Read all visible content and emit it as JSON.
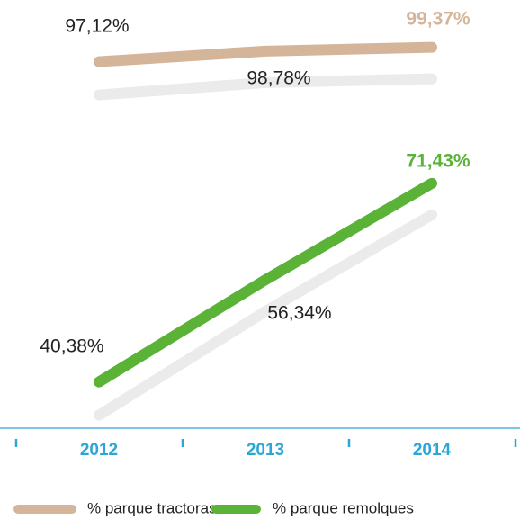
{
  "chart_data": [
    {
      "type": "line",
      "series": [
        {
          "name": "% parque tractoras",
          "color": "#d4b59a",
          "values": [
            97.12,
            98.78,
            99.37
          ],
          "value_labels": [
            "97,12%",
            "98,78%",
            "99,37%"
          ]
        }
      ],
      "ylim": [
        87,
        104
      ]
    },
    {
      "type": "line",
      "categories": [
        "2012",
        "2013",
        "2014"
      ],
      "series": [
        {
          "name": "% parque remolques",
          "color": "#5ab336",
          "values": [
            40.38,
            56.34,
            71.43
          ],
          "value_labels": [
            "40,38%",
            "56,34%",
            "71,43%"
          ]
        }
      ],
      "ylim": [
        34,
        79
      ]
    }
  ]
}
